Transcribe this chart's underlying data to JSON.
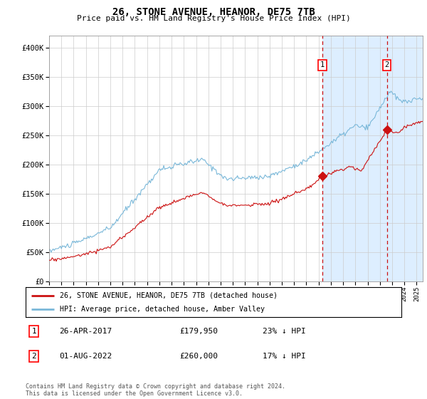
{
  "title": "26, STONE AVENUE, HEANOR, DE75 7TB",
  "subtitle": "Price paid vs. HM Land Registry's House Price Index (HPI)",
  "ylim": [
    0,
    420000
  ],
  "xlim_start": 1995.0,
  "xlim_end": 2025.5,
  "marker1_x": 2017.32,
  "marker1_y": 179950,
  "marker1_label": "1",
  "marker1_date": "26-APR-2017",
  "marker1_price": "£179,950",
  "marker1_hpi": "23% ↓ HPI",
  "marker2_x": 2022.58,
  "marker2_y": 260000,
  "marker2_label": "2",
  "marker2_date": "01-AUG-2022",
  "marker2_price": "£260,000",
  "marker2_hpi": "17% ↓ HPI",
  "hpi_color": "#7ab8d9",
  "price_color": "#cc1111",
  "shade_color": "#ddeeff",
  "vline_color": "#cc1111",
  "legend_entry1": "26, STONE AVENUE, HEANOR, DE75 7TB (detached house)",
  "legend_entry2": "HPI: Average price, detached house, Amber Valley",
  "footnote": "Contains HM Land Registry data © Crown copyright and database right 2024.\nThis data is licensed under the Open Government Licence v3.0.",
  "background_color": "#ffffff",
  "grid_color": "#cccccc"
}
